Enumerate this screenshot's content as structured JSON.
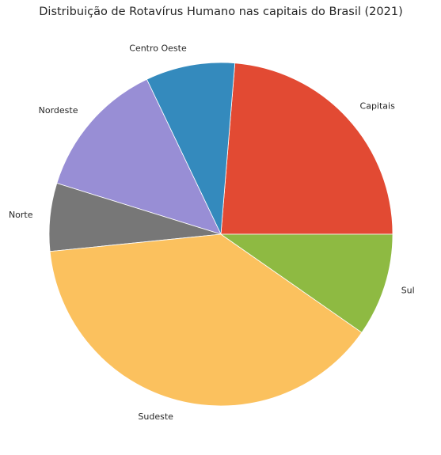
{
  "chart_data": {
    "type": "pie",
    "title": "Distribuição de Rotavírus Humano nas capitais do Brasil (2021)",
    "start_angle_deg": 0,
    "direction": "counterclockwise",
    "legend": "none",
    "slices": [
      {
        "label": "Capitais",
        "value": 23.7,
        "color": "#E24A33"
      },
      {
        "label": "Centro Oeste",
        "value": 8.4,
        "color": "#348ABD"
      },
      {
        "label": "Nordeste",
        "value": 13.1,
        "color": "#988ED5"
      },
      {
        "label": "Norte",
        "value": 6.4,
        "color": "#777777"
      },
      {
        "label": "Sudeste",
        "value": 38.7,
        "color": "#FBC15E"
      },
      {
        "label": "Sul",
        "value": 9.7,
        "color": "#8EBA42"
      }
    ]
  }
}
